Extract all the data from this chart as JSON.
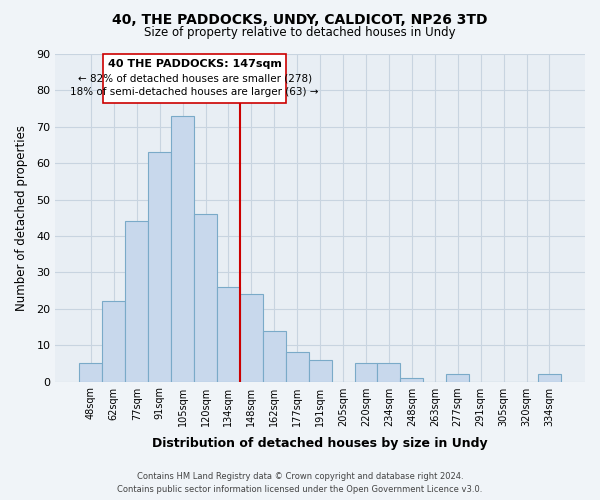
{
  "title": "40, THE PADDOCKS, UNDY, CALDICOT, NP26 3TD",
  "subtitle": "Size of property relative to detached houses in Undy",
  "xlabel": "Distribution of detached houses by size in Undy",
  "ylabel": "Number of detached properties",
  "bar_color": "#c8d8ec",
  "bar_edge_color": "#7aaac8",
  "categories": [
    "48sqm",
    "62sqm",
    "77sqm",
    "91sqm",
    "105sqm",
    "120sqm",
    "134sqm",
    "148sqm",
    "162sqm",
    "177sqm",
    "191sqm",
    "205sqm",
    "220sqm",
    "234sqm",
    "248sqm",
    "263sqm",
    "277sqm",
    "291sqm",
    "305sqm",
    "320sqm",
    "334sqm"
  ],
  "values": [
    5,
    22,
    44,
    63,
    73,
    46,
    26,
    24,
    14,
    8,
    6,
    0,
    5,
    5,
    1,
    0,
    2,
    0,
    0,
    0,
    2
  ],
  "vline_index": 7,
  "vline_color": "#cc0000",
  "ylim": [
    0,
    90
  ],
  "yticks": [
    0,
    10,
    20,
    30,
    40,
    50,
    60,
    70,
    80,
    90
  ],
  "annotation_title": "40 THE PADDOCKS: 147sqm",
  "annotation_line1": "← 82% of detached houses are smaller (278)",
  "annotation_line2": "18% of semi-detached houses are larger (63) →",
  "footer_line1": "Contains HM Land Registry data © Crown copyright and database right 2024.",
  "footer_line2": "Contains public sector information licensed under the Open Government Licence v3.0.",
  "background_color": "#f0f4f8",
  "plot_bg_color": "#e8eef4",
  "grid_color": "#c8d4e0"
}
